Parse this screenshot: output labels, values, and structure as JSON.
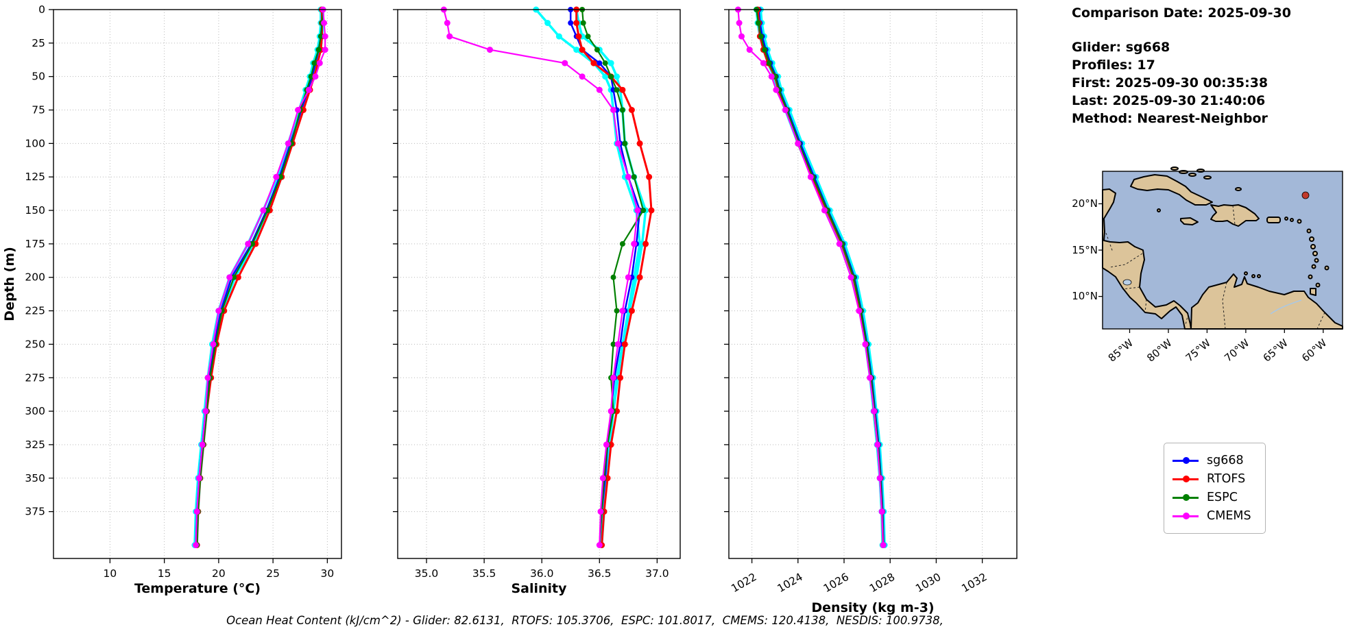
{
  "info_panel": {
    "comparison_date": "Comparison Date: 2025-09-30",
    "glider": "Glider: sg668",
    "profiles": "Profiles: 17",
    "first": "First: 2025-09-30 00:35:38",
    "last": "Last: 2025-09-30 21:40:06",
    "method": "Method: Nearest-Neighbor"
  },
  "caption": "Ocean Heat Content (kJ/cm^2) - Glider: 82.6131,  RTOFS: 105.3706,  ESPC: 101.8017,  CMEMS: 120.4138,  NESDIS: 100.9738,",
  "legend": {
    "entries": [
      {
        "label": "sg668",
        "color": "#0000ff"
      },
      {
        "label": "RTOFS",
        "color": "#ff0000"
      },
      {
        "label": "ESPC",
        "color": "#008000"
      },
      {
        "label": "CMEMS",
        "color": "#ff00ff"
      }
    ]
  },
  "map": {
    "lat_tick_labels": [
      "20°N",
      "15°N",
      "10°N"
    ],
    "lon_tick_labels": [
      "85°W",
      "80°W",
      "75°W",
      "70°W",
      "65°W",
      "60°W"
    ],
    "ocean_color": "#a3b8d8",
    "land_color": "#dcc49a",
    "marker_color": "#c0392b"
  },
  "chart_data": {
    "type": "line",
    "ylabel": "Depth (m)",
    "depth_range": [
      0,
      410
    ],
    "depth_ticks": [
      0,
      25,
      50,
      75,
      100,
      125,
      150,
      175,
      200,
      225,
      250,
      275,
      300,
      325,
      350,
      375
    ],
    "depth_tick_labels": [
      "0",
      "25",
      "50",
      "75",
      "100",
      "125",
      "150",
      "175",
      "200",
      "225",
      "250",
      "275",
      "300",
      "325",
      "350",
      "375"
    ],
    "depths": [
      0,
      10,
      20,
      30,
      40,
      50,
      60,
      75,
      100,
      125,
      150,
      175,
      200,
      225,
      250,
      275,
      300,
      325,
      350,
      375,
      400
    ],
    "panels": [
      {
        "id": "temperature",
        "xlabel": "Temperature (°C)",
        "xlim": [
          4.8,
          31.3
        ],
        "xticks": [
          10,
          15,
          20,
          25,
          30
        ],
        "xtick_labels": [
          "10",
          "15",
          "20",
          "25",
          "30"
        ],
        "tick_rotation": 0
      },
      {
        "id": "salinity",
        "xlabel": "Salinity",
        "xlim": [
          34.75,
          37.2
        ],
        "xticks": [
          35.0,
          35.5,
          36.0,
          36.5,
          37.0
        ],
        "xtick_labels": [
          "35.0",
          "35.5",
          "36.0",
          "36.5",
          "37.0"
        ],
        "tick_rotation": 0
      },
      {
        "id": "density",
        "xlabel": "Density (kg m-3)",
        "xlim": [
          1021,
          1033.5
        ],
        "xticks": [
          1022,
          1024,
          1026,
          1028,
          1030,
          1032
        ],
        "xtick_labels": [
          "1022",
          "1024",
          "1026",
          "1028",
          "1030",
          "1032"
        ],
        "tick_rotation": 30
      }
    ],
    "series": [
      {
        "name": "glider-profiles-1",
        "color": "#00ffff",
        "line_width": 3.5,
        "marker_radius": 4.5,
        "in_legend": false,
        "temperature": [
          29.6,
          29.6,
          29.5,
          29.4,
          29.0,
          28.7,
          28.3,
          27.7,
          26.7,
          25.8,
          24.6,
          23.3,
          21.5,
          20.4,
          19.7,
          19.2,
          18.9,
          18.6,
          18.3,
          18.1,
          18.0
        ],
        "salinity": [
          35.95,
          36.05,
          36.15,
          36.3,
          36.45,
          36.55,
          36.6,
          36.62,
          36.65,
          36.72,
          36.82,
          36.85,
          36.8,
          36.75,
          36.7,
          36.65,
          36.62,
          36.58,
          36.56,
          36.53,
          36.52
        ],
        "density": [
          1022.2,
          1022.25,
          1022.35,
          1022.5,
          1022.7,
          1022.95,
          1023.1,
          1023.45,
          1024.0,
          1024.6,
          1025.2,
          1025.85,
          1026.35,
          1026.68,
          1026.93,
          1027.13,
          1027.28,
          1027.43,
          1027.55,
          1027.63,
          1027.67
        ]
      },
      {
        "name": "glider-profiles-2",
        "color": "#00ffff",
        "line_width": 3.5,
        "marker_radius": 4.5,
        "in_legend": false,
        "temperature": [
          29.4,
          29.4,
          29.3,
          29.1,
          28.7,
          28.4,
          28.0,
          27.4,
          26.4,
          25.4,
          24.1,
          22.7,
          21.0,
          20.0,
          19.4,
          19.0,
          18.7,
          18.4,
          18.1,
          17.9,
          17.8
        ],
        "salinity": [
          36.3,
          36.32,
          36.35,
          36.5,
          36.6,
          36.65,
          36.68,
          36.7,
          36.72,
          36.8,
          36.9,
          36.87,
          36.82,
          36.76,
          36.7,
          36.66,
          36.62,
          36.59,
          36.56,
          36.54,
          36.52
        ],
        "density": [
          1022.38,
          1022.43,
          1022.53,
          1022.68,
          1022.88,
          1023.13,
          1023.28,
          1023.63,
          1024.18,
          1024.78,
          1025.38,
          1026.03,
          1026.52,
          1026.82,
          1027.06,
          1027.26,
          1027.4,
          1027.55,
          1027.65,
          1027.72,
          1027.76
        ]
      },
      {
        "name": "sg668",
        "color": "#0000ff",
        "line_width": 2.5,
        "marker_radius": 4,
        "in_legend": true,
        "temperature": [
          29.5,
          29.5,
          29.4,
          29.2,
          28.9,
          28.6,
          28.2,
          27.6,
          26.6,
          25.6,
          24.4,
          23.0,
          21.2,
          20.2,
          19.6,
          19.1,
          18.8,
          18.5,
          18.2,
          18.0,
          17.9
        ],
        "salinity": [
          36.25,
          36.25,
          36.3,
          36.35,
          36.5,
          36.6,
          36.62,
          36.65,
          36.68,
          36.75,
          36.85,
          36.82,
          36.78,
          36.72,
          36.68,
          36.63,
          36.6,
          36.57,
          36.55,
          36.52,
          36.5
        ],
        "density": [
          1022.3,
          1022.35,
          1022.45,
          1022.6,
          1022.8,
          1023.05,
          1023.2,
          1023.55,
          1024.1,
          1024.7,
          1025.3,
          1025.95,
          1026.45,
          1026.75,
          1027.0,
          1027.2,
          1027.35,
          1027.5,
          1027.6,
          1027.68,
          1027.72
        ]
      },
      {
        "name": "RTOFS",
        "color": "#ff0000",
        "line_width": 3,
        "marker_radius": 4.5,
        "in_legend": true,
        "temperature": [
          29.5,
          29.5,
          29.5,
          29.4,
          29.1,
          28.8,
          28.4,
          27.8,
          26.8,
          25.8,
          24.7,
          23.4,
          21.8,
          20.5,
          19.8,
          19.3,
          18.9,
          18.6,
          18.3,
          18.1,
          18.0
        ],
        "salinity": [
          36.3,
          36.3,
          36.32,
          36.35,
          36.45,
          36.6,
          36.7,
          36.78,
          36.85,
          36.93,
          36.95,
          36.9,
          36.85,
          36.78,
          36.72,
          36.68,
          36.65,
          36.6,
          36.57,
          36.54,
          36.52
        ],
        "density": [
          1022.25,
          1022.3,
          1022.35,
          1022.5,
          1022.7,
          1023.0,
          1023.15,
          1023.5,
          1024.0,
          1024.6,
          1025.25,
          1025.9,
          1026.4,
          1026.72,
          1026.96,
          1027.16,
          1027.3,
          1027.46,
          1027.57,
          1027.65,
          1027.7
        ]
      },
      {
        "name": "ESPC",
        "color": "#008000",
        "line_width": 2.2,
        "marker_radius": 4,
        "in_legend": true,
        "temperature": [
          29.6,
          29.5,
          29.4,
          29.2,
          28.8,
          28.5,
          28.1,
          27.5,
          26.7,
          25.7,
          24.5,
          23.1,
          21.4,
          20.3,
          19.7,
          19.2,
          18.9,
          18.6,
          18.3,
          18.1,
          18.0
        ],
        "salinity": [
          36.35,
          36.36,
          36.4,
          36.48,
          36.55,
          36.6,
          36.65,
          36.7,
          36.72,
          36.8,
          36.88,
          36.7,
          36.62,
          36.65,
          36.62,
          36.6,
          36.62,
          36.57,
          36.54,
          36.52,
          36.5
        ],
        "density": [
          1022.2,
          1022.28,
          1022.4,
          1022.55,
          1022.75,
          1023.02,
          1023.18,
          1023.52,
          1024.05,
          1024.65,
          1025.28,
          1025.92,
          1026.42,
          1026.73,
          1026.98,
          1027.18,
          1027.33,
          1027.48,
          1027.58,
          1027.66,
          1027.71
        ]
      },
      {
        "name": "CMEMS",
        "color": "#ff00ff",
        "line_width": 2.2,
        "marker_radius": 4.5,
        "in_legend": true,
        "temperature": [
          29.6,
          29.7,
          29.8,
          29.8,
          29.3,
          28.9,
          28.3,
          27.3,
          26.4,
          25.3,
          24.1,
          22.7,
          21.0,
          20.0,
          19.5,
          19.0,
          18.8,
          18.5,
          18.2,
          18.0,
          17.9
        ],
        "salinity": [
          35.15,
          35.18,
          35.2,
          35.55,
          36.2,
          36.35,
          36.5,
          36.62,
          36.66,
          36.75,
          36.83,
          36.8,
          36.75,
          36.7,
          36.66,
          36.62,
          36.6,
          36.56,
          36.53,
          36.51,
          36.5
        ],
        "density": [
          1021.4,
          1021.45,
          1021.55,
          1021.9,
          1022.5,
          1022.85,
          1023.05,
          1023.45,
          1024.0,
          1024.55,
          1025.15,
          1025.8,
          1026.3,
          1026.65,
          1026.92,
          1027.12,
          1027.3,
          1027.45,
          1027.55,
          1027.64,
          1027.7
        ]
      }
    ]
  }
}
